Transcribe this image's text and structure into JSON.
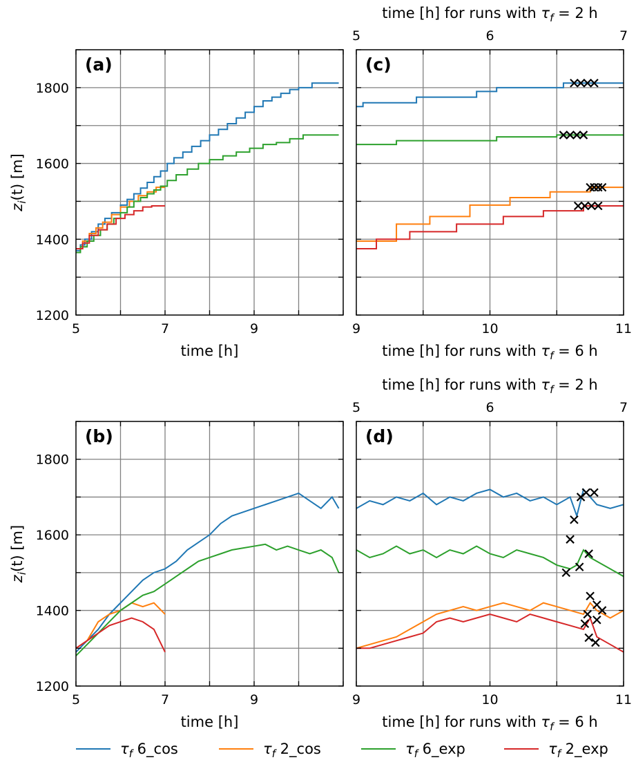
{
  "chart_data": [
    {
      "panel": "(a)",
      "type": "line",
      "xlabel": "time [h]",
      "ylabel_main": "z",
      "ylabel_sub": "i",
      "ylabel_rest": "(t) [m]",
      "xlim": [
        5,
        11
      ],
      "ylim": [
        1200,
        1900
      ],
      "xticks": [
        5,
        7,
        9
      ],
      "yticks": [
        1200,
        1400,
        1600,
        1800
      ],
      "grid": true,
      "series": [
        {
          "name": "τf 6_cos",
          "color": "#1f77b4",
          "step": true,
          "x": [
            5.0,
            5.1,
            5.2,
            5.35,
            5.5,
            5.65,
            5.8,
            6.0,
            6.15,
            6.3,
            6.45,
            6.6,
            6.75,
            6.9,
            7.05,
            7.2,
            7.4,
            7.6,
            7.8,
            8.0,
            8.2,
            8.4,
            8.6,
            8.8,
            9.0,
            9.2,
            9.4,
            9.6,
            9.8,
            10.0,
            10.3,
            10.6,
            10.9
          ],
          "y": [
            1370,
            1385,
            1400,
            1420,
            1440,
            1455,
            1470,
            1490,
            1505,
            1520,
            1535,
            1550,
            1565,
            1580,
            1600,
            1615,
            1630,
            1645,
            1660,
            1675,
            1690,
            1705,
            1720,
            1735,
            1750,
            1765,
            1775,
            1785,
            1795,
            1800,
            1812,
            1812,
            1812
          ]
        },
        {
          "name": "τf 2_cos",
          "color": "#ff7f0e",
          "step": true,
          "x": [
            5.0,
            5.15,
            5.3,
            5.45,
            5.6,
            5.8,
            6.0,
            6.2,
            6.4,
            6.6,
            6.8,
            7.0
          ],
          "y": [
            1375,
            1395,
            1415,
            1430,
            1445,
            1465,
            1485,
            1500,
            1515,
            1525,
            1537,
            1537
          ]
        },
        {
          "name": "τf 6_exp",
          "color": "#2ca02c",
          "step": true,
          "x": [
            5.0,
            5.1,
            5.25,
            5.4,
            5.55,
            5.7,
            5.85,
            6.0,
            6.15,
            6.3,
            6.45,
            6.6,
            6.75,
            6.9,
            7.05,
            7.25,
            7.5,
            7.75,
            8.0,
            8.3,
            8.6,
            8.9,
            9.2,
            9.5,
            9.8,
            10.1,
            10.4,
            10.7,
            10.9
          ],
          "y": [
            1365,
            1380,
            1395,
            1410,
            1425,
            1440,
            1455,
            1470,
            1485,
            1500,
            1510,
            1520,
            1530,
            1540,
            1555,
            1570,
            1585,
            1600,
            1610,
            1620,
            1630,
            1640,
            1650,
            1655,
            1665,
            1675,
            1675,
            1675,
            1675
          ]
        },
        {
          "name": "τf 2_exp",
          "color": "#d62728",
          "step": true,
          "x": [
            5.0,
            5.15,
            5.3,
            5.5,
            5.7,
            5.9,
            6.1,
            6.3,
            6.5,
            6.7,
            7.0
          ],
          "y": [
            1375,
            1390,
            1410,
            1425,
            1440,
            1455,
            1465,
            1475,
            1485,
            1488,
            1488
          ]
        }
      ]
    },
    {
      "panel": "(b)",
      "type": "line",
      "xlabel": "time [h]",
      "ylabel_main": "z",
      "ylabel_sub": "i",
      "ylabel_rest": "(t) [m]",
      "xlim": [
        5,
        11
      ],
      "ylim": [
        1200,
        1900
      ],
      "xticks": [
        5,
        7,
        9
      ],
      "yticks": [
        1200,
        1400,
        1600,
        1800
      ],
      "grid": true,
      "series": [
        {
          "name": "τf 6_cos",
          "color": "#1f77b4",
          "x": [
            5.0,
            5.25,
            5.5,
            5.75,
            6.0,
            6.25,
            6.5,
            6.75,
            7.0,
            7.25,
            7.5,
            7.75,
            8.0,
            8.25,
            8.5,
            8.75,
            9.0,
            9.25,
            9.5,
            9.75,
            10.0,
            10.25,
            10.5,
            10.75,
            10.9
          ],
          "y": [
            1290,
            1320,
            1350,
            1390,
            1420,
            1450,
            1480,
            1500,
            1510,
            1530,
            1560,
            1580,
            1600,
            1630,
            1650,
            1660,
            1670,
            1680,
            1690,
            1700,
            1710,
            1690,
            1670,
            1700,
            1670
          ]
        },
        {
          "name": "τf 2_cos",
          "color": "#ff7f0e",
          "x": [
            5.0,
            5.25,
            5.5,
            5.75,
            6.0,
            6.25,
            6.5,
            6.75,
            7.0
          ],
          "y": [
            1300,
            1320,
            1370,
            1390,
            1400,
            1420,
            1410,
            1420,
            1390
          ]
        },
        {
          "name": "τf 6_exp",
          "color": "#2ca02c",
          "x": [
            5.0,
            5.25,
            5.5,
            5.75,
            6.0,
            6.25,
            6.5,
            6.75,
            7.0,
            7.25,
            7.5,
            7.75,
            8.0,
            8.25,
            8.5,
            8.75,
            9.0,
            9.25,
            9.5,
            9.75,
            10.0,
            10.25,
            10.5,
            10.75,
            10.9
          ],
          "y": [
            1280,
            1310,
            1340,
            1370,
            1400,
            1420,
            1440,
            1450,
            1470,
            1490,
            1510,
            1530,
            1540,
            1550,
            1560,
            1565,
            1570,
            1575,
            1560,
            1570,
            1560,
            1550,
            1560,
            1540,
            1500
          ]
        },
        {
          "name": "τf 2_exp",
          "color": "#d62728",
          "x": [
            5.0,
            5.25,
            5.5,
            5.75,
            6.0,
            6.25,
            6.5,
            6.75,
            7.0
          ],
          "y": [
            1300,
            1320,
            1340,
            1360,
            1370,
            1380,
            1370,
            1350,
            1290
          ]
        }
      ]
    },
    {
      "panel": "(c)",
      "type": "line",
      "xlabel": "time [h] for runs with τf = 6 h",
      "top_xlabel": "time [h] for runs with τf = 2 h",
      "xlim": [
        9,
        11
      ],
      "ylim": [
        1200,
        1900
      ],
      "xticks": [
        9,
        10,
        11
      ],
      "top_xticks": [
        5,
        6,
        7
      ],
      "yticks": [
        1200,
        1400,
        1600,
        1800
      ],
      "grid": true,
      "series": [
        {
          "name": "τf 6_cos",
          "color": "#1f77b4",
          "step": true,
          "x": [
            9.0,
            9.05,
            9.45,
            9.9,
            10.05,
            10.55,
            11.0
          ],
          "y": [
            1750,
            1760,
            1775,
            1790,
            1800,
            1812,
            1812
          ]
        },
        {
          "name": "τf 6_exp",
          "color": "#2ca02c",
          "step": true,
          "x": [
            9.0,
            9.3,
            10.05,
            10.5,
            11.0
          ],
          "y": [
            1650,
            1660,
            1670,
            1675,
            1675
          ]
        },
        {
          "name": "τf 2_cos",
          "color": "#ff7f0e",
          "step": true,
          "x": [
            9.0,
            9.3,
            9.55,
            9.85,
            10.15,
            10.45,
            10.75,
            11.0
          ],
          "y": [
            1395,
            1440,
            1460,
            1490,
            1510,
            1525,
            1537,
            1537
          ]
        },
        {
          "name": "τf 2_exp",
          "color": "#d62728",
          "step": true,
          "x": [
            9.0,
            9.15,
            9.4,
            9.75,
            10.1,
            10.4,
            10.7,
            11.0
          ],
          "y": [
            1375,
            1400,
            1420,
            1440,
            1460,
            1475,
            1488,
            1488
          ]
        }
      ],
      "markers": [
        {
          "x": [
            10.63,
            10.68,
            10.73,
            10.78
          ],
          "y": [
            1812,
            1812,
            1812,
            1812
          ]
        },
        {
          "x": [
            10.55,
            10.6,
            10.65,
            10.7
          ],
          "y": [
            1675,
            1675,
            1675,
            1675
          ]
        },
        {
          "x": [
            10.75,
            10.78,
            10.81,
            10.84
          ],
          "y": [
            1537,
            1537,
            1537,
            1537
          ]
        },
        {
          "x": [
            10.66,
            10.71,
            10.76,
            10.81
          ],
          "y": [
            1488,
            1488,
            1488,
            1488
          ]
        }
      ]
    },
    {
      "panel": "(d)",
      "type": "line",
      "xlabel": "time [h] for runs with τf = 6 h",
      "top_xlabel": "time [h] for runs with τf = 2 h",
      "xlim": [
        9,
        11
      ],
      "ylim": [
        1200,
        1900
      ],
      "xticks": [
        9,
        10,
        11
      ],
      "top_xticks": [
        5,
        6,
        7
      ],
      "yticks": [
        1200,
        1400,
        1600,
        1800
      ],
      "grid": true,
      "series": [
        {
          "name": "τf 6_cos",
          "color": "#1f77b4",
          "x": [
            9.0,
            9.1,
            9.2,
            9.3,
            9.4,
            9.5,
            9.6,
            9.7,
            9.8,
            9.9,
            10.0,
            10.1,
            10.2,
            10.3,
            10.4,
            10.5,
            10.6,
            10.65,
            10.7,
            10.75,
            10.8,
            10.9,
            11.0
          ],
          "y": [
            1670,
            1690,
            1680,
            1700,
            1690,
            1710,
            1680,
            1700,
            1690,
            1710,
            1720,
            1700,
            1710,
            1690,
            1700,
            1680,
            1700,
            1650,
            1720,
            1700,
            1680,
            1670,
            1680
          ]
        },
        {
          "name": "τf 6_exp",
          "color": "#2ca02c",
          "x": [
            9.0,
            9.1,
            9.2,
            9.3,
            9.4,
            9.5,
            9.6,
            9.7,
            9.8,
            9.9,
            10.0,
            10.1,
            10.2,
            10.3,
            10.4,
            10.5,
            10.6,
            10.65,
            10.7,
            10.75,
            10.8,
            10.9,
            11.0
          ],
          "y": [
            1560,
            1540,
            1550,
            1570,
            1550,
            1560,
            1540,
            1560,
            1550,
            1570,
            1550,
            1540,
            1560,
            1550,
            1540,
            1520,
            1510,
            1520,
            1560,
            1540,
            1530,
            1510,
            1490
          ]
        },
        {
          "name": "τf 2_cos",
          "color": "#ff7f0e",
          "x": [
            9.0,
            9.1,
            9.2,
            9.3,
            9.4,
            9.5,
            9.6,
            9.7,
            9.8,
            9.9,
            10.0,
            10.1,
            10.2,
            10.3,
            10.4,
            10.5,
            10.6,
            10.7,
            10.75,
            10.8,
            10.9,
            11.0
          ],
          "y": [
            1300,
            1310,
            1320,
            1330,
            1350,
            1370,
            1390,
            1400,
            1410,
            1400,
            1410,
            1420,
            1410,
            1400,
            1420,
            1410,
            1400,
            1390,
            1420,
            1400,
            1380,
            1400
          ]
        },
        {
          "name": "τf 2_exp",
          "color": "#d62728",
          "x": [
            9.0,
            9.1,
            9.2,
            9.3,
            9.4,
            9.5,
            9.6,
            9.7,
            9.8,
            9.9,
            10.0,
            10.1,
            10.2,
            10.3,
            10.4,
            10.5,
            10.6,
            10.7,
            10.75,
            10.8,
            10.9,
            11.0
          ],
          "y": [
            1300,
            1300,
            1310,
            1320,
            1330,
            1340,
            1370,
            1380,
            1370,
            1380,
            1390,
            1380,
            1370,
            1390,
            1380,
            1370,
            1360,
            1350,
            1380,
            1330,
            1310,
            1290
          ]
        }
      ],
      "markers": [
        {
          "x": [
            10.68,
            10.72,
            10.78,
            10.63,
            10.6,
            10.57
          ],
          "y": [
            1700,
            1712,
            1712,
            1640,
            1588,
            1500
          ]
        },
        {
          "x": [
            10.67,
            10.74,
            10.8
          ],
          "y": [
            1515,
            1550,
            1415
          ]
        },
        {
          "x": [
            10.75,
            10.84,
            10.8,
            10.73,
            10.71
          ],
          "y": [
            1438,
            1400,
            1375,
            1390,
            1365
          ]
        },
        {
          "x": [
            10.74,
            10.79
          ],
          "y": [
            1328,
            1315
          ]
        }
      ]
    }
  ],
  "legend": [
    {
      "label": "τf 6_cos",
      "color": "#1f77b4"
    },
    {
      "label": "τf 2_cos",
      "color": "#ff7f0e"
    },
    {
      "label": "τf 6_exp",
      "color": "#2ca02c"
    },
    {
      "label": "τf 2_exp",
      "color": "#d62728"
    }
  ]
}
